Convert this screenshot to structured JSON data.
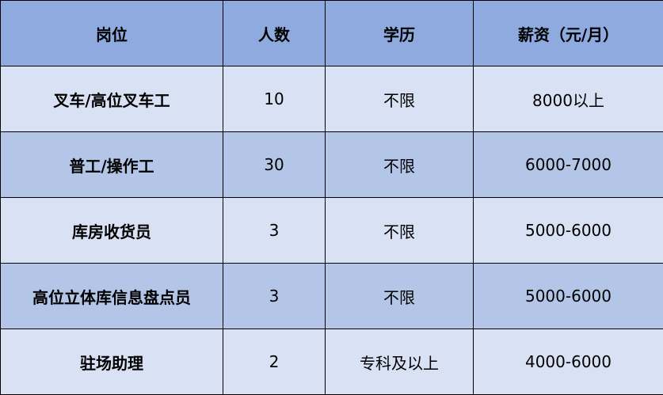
{
  "headers": [
    "岗位",
    "人数",
    "学历",
    "薪资（元/月）"
  ],
  "rows": [
    {
      "position": "叉车/高位叉车工",
      "count": "10",
      "education": "不限",
      "salary": "8000以上"
    },
    {
      "position": "普工/操作工",
      "count": "30",
      "education": "不限",
      "salary": "6000-7000"
    },
    {
      "position": "库房收货员",
      "count": "3",
      "education": "不限",
      "salary": "5000-6000"
    },
    {
      "position": "高位立体库信息盘点员",
      "count": "3",
      "education": "不限",
      "salary": "5000-6000"
    },
    {
      "position": "驻场助理",
      "count": "2",
      "education": "专科及以上",
      "salary": "4000-6000"
    }
  ],
  "colors": {
    "header": "#8eaadf",
    "row_light": "#d9e1f4",
    "row_dark": "#b4c6e7",
    "border": "#000000"
  }
}
